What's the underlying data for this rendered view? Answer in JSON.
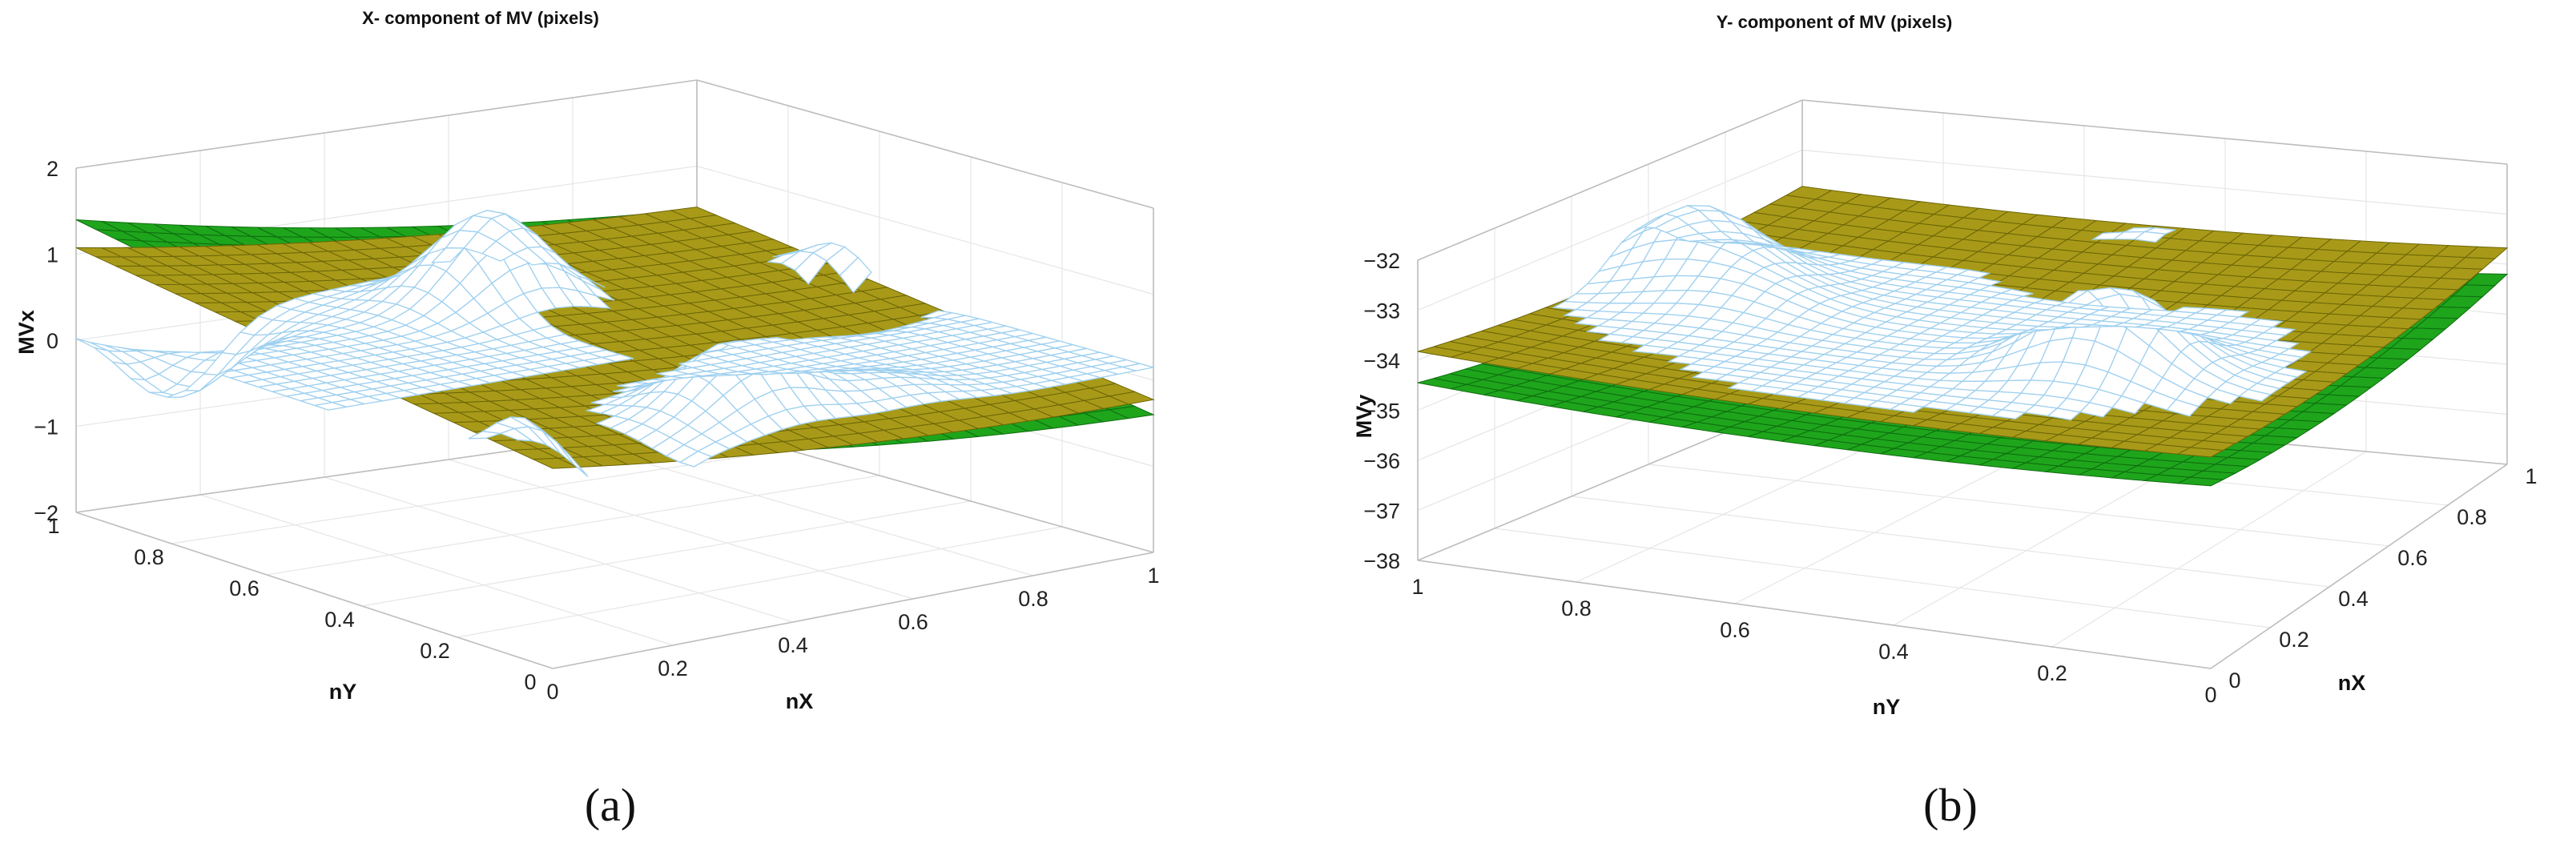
{
  "captions": [
    "(a)",
    "(b)"
  ],
  "chart_data": [
    {
      "type": "surface",
      "title": "X- component of MV (pixels)",
      "xlabel": "nX",
      "ylabel": "nY",
      "zlabel": "MVx",
      "xlim": [
        0,
        1
      ],
      "ylim": [
        0,
        1
      ],
      "zlim": [
        -2,
        2
      ],
      "x_ticks": [
        "0",
        "0.2",
        "0.4",
        "0.6",
        "0.8",
        "1"
      ],
      "y_ticks": [
        "0",
        "0.2",
        "0.4",
        "0.6",
        "0.8",
        "1"
      ],
      "z_ticks": [
        "−2",
        "−1",
        "0",
        "1",
        "2"
      ],
      "grid": true,
      "surfaces": [
        {
          "kind": "wireframe",
          "color": "#9fd0ef"
        },
        {
          "kind": "plane",
          "color": "#1ea51c"
        },
        {
          "kind": "plane",
          "color": "#a89a18"
        }
      ]
    },
    {
      "type": "surface",
      "title": "Y- component of MV (pixels)",
      "xlabel": "nX",
      "ylabel": "nY",
      "zlabel": "MVy",
      "xlim": [
        0,
        1
      ],
      "ylim": [
        0,
        1
      ],
      "zlim": [
        -38,
        -32
      ],
      "x_ticks": [
        "0",
        "0.2",
        "0.4",
        "0.6",
        "0.8",
        "1"
      ],
      "y_ticks": [
        "0",
        "0.2",
        "0.4",
        "0.6",
        "0.8",
        "1"
      ],
      "z_ticks": [
        "−38",
        "−37",
        "−36",
        "−35",
        "−34",
        "−33",
        "−32"
      ],
      "grid": true,
      "surfaces": [
        {
          "kind": "wireframe",
          "color": "#9fd0ef"
        },
        {
          "kind": "plane",
          "color": "#1ea51c"
        },
        {
          "kind": "plane",
          "color": "#a89a18"
        }
      ]
    }
  ]
}
